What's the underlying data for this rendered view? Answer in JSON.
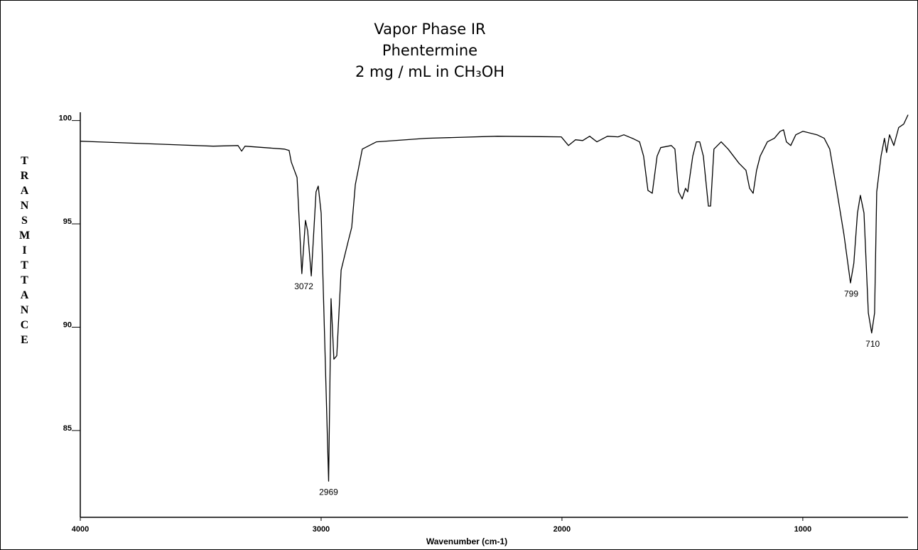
{
  "chart_data": {
    "type": "line",
    "title": "Vapor Phase IR",
    "subtitle": [
      "Phentermine",
      "2 mg / mL in CH₃OH"
    ],
    "x_label": "Wavenumber (cm-1)",
    "y_label": "TRANSMITTANCE",
    "color": "#000000",
    "xlim": [
      4000,
      563
    ],
    "ylim": [
      80.8,
      100.4
    ],
    "xticks": [
      4000,
      3000,
      2000,
      1000
    ],
    "yticks": [
      85,
      90,
      95,
      100
    ],
    "x": [
      4000,
      3448,
      3345,
      3330,
      3316,
      3153,
      3133,
      3124,
      3100,
      3080,
      3065,
      3056,
      3041,
      3021,
      3012,
      3000,
      2969,
      2959,
      2947,
      2935,
      2917,
      2888,
      2873,
      2858,
      2829,
      2770,
      2563,
      2268,
      2003,
      1973,
      1944,
      1914,
      1885,
      1855,
      1811,
      1767,
      1743,
      1708,
      1678,
      1661,
      1643,
      1625,
      1605,
      1590,
      1546,
      1531,
      1516,
      1501,
      1487,
      1478,
      1457,
      1442,
      1428,
      1413,
      1392,
      1383,
      1369,
      1339,
      1310,
      1265,
      1236,
      1221,
      1206,
      1192,
      1177,
      1147,
      1118,
      1094,
      1080,
      1068,
      1050,
      1029,
      1000,
      941,
      911,
      888,
      858,
      829,
      802,
      788,
      773,
      761,
      746,
      728,
      714,
      702,
      693,
      675,
      661,
      652,
      640,
      622,
      602,
      581,
      563
    ],
    "values": [
      99.0,
      98.76,
      98.79,
      98.52,
      98.76,
      98.62,
      98.55,
      98.0,
      97.24,
      92.59,
      95.17,
      94.66,
      92.48,
      96.55,
      96.83,
      95.52,
      82.55,
      91.38,
      88.45,
      88.62,
      92.76,
      94.14,
      94.83,
      96.9,
      98.62,
      98.97,
      99.14,
      99.24,
      99.21,
      98.79,
      99.07,
      99.03,
      99.24,
      98.97,
      99.24,
      99.21,
      99.31,
      99.14,
      98.97,
      98.28,
      96.62,
      96.48,
      98.28,
      98.69,
      98.79,
      98.62,
      96.55,
      96.21,
      96.72,
      96.55,
      98.28,
      98.97,
      98.97,
      98.28,
      95.86,
      95.86,
      98.62,
      98.97,
      98.62,
      97.93,
      97.59,
      96.72,
      96.48,
      97.59,
      98.28,
      98.97,
      99.14,
      99.48,
      99.55,
      98.97,
      98.79,
      99.31,
      99.48,
      99.31,
      99.14,
      98.62,
      96.55,
      94.48,
      92.14,
      93.1,
      95.52,
      96.38,
      95.52,
      90.69,
      89.72,
      90.69,
      96.55,
      98.28,
      99.14,
      98.45,
      99.31,
      98.79,
      99.66,
      99.83,
      100.28
    ],
    "annotations": [
      {
        "text": "3072",
        "x": 3072,
        "y": 92.5
      },
      {
        "text": "2969",
        "x": 2969,
        "y": 82.55
      },
      {
        "text": "799",
        "x": 799,
        "y": 92.14
      },
      {
        "text": "710",
        "x": 710,
        "y": 89.72
      }
    ]
  }
}
